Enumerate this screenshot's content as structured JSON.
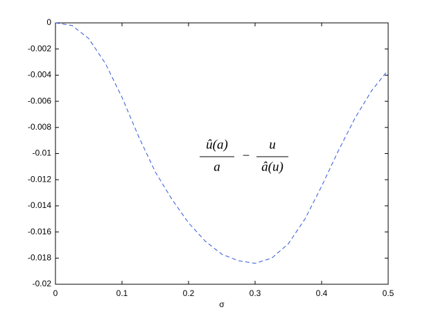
{
  "chart_data": {
    "type": "line",
    "xlabel": "σ",
    "annotation": {
      "numerator_1": "û(a)",
      "denominator_1": "a",
      "operator": "−",
      "numerator_2": "u",
      "denominator_2": "â(u)"
    },
    "x": [
      0,
      0.025,
      0.05,
      0.075,
      0.1,
      0.125,
      0.15,
      0.175,
      0.2,
      0.225,
      0.25,
      0.275,
      0.3,
      0.325,
      0.35,
      0.375,
      0.4,
      0.425,
      0.45,
      0.475,
      0.5
    ],
    "values": [
      0,
      -0.0002,
      -0.0012,
      -0.0031,
      -0.0057,
      -0.0087,
      -0.0114,
      -0.0135,
      -0.0153,
      -0.0167,
      -0.0177,
      -0.0182,
      -0.0184,
      -0.018,
      -0.0169,
      -0.015,
      -0.0125,
      -0.0098,
      -0.0073,
      -0.0052,
      -0.0036
    ],
    "color": "#2f56d8",
    "line_style": "dashed",
    "xlim": [
      0,
      0.5
    ],
    "xticks": [
      0,
      0.1,
      0.2,
      0.3,
      0.4,
      0.5
    ],
    "ylim": [
      -0.02,
      0
    ],
    "yticks": [
      -0.02,
      -0.018,
      -0.016,
      -0.014,
      -0.012,
      -0.01,
      -0.008,
      -0.006,
      -0.004,
      -0.002,
      0
    ],
    "grid": false
  }
}
